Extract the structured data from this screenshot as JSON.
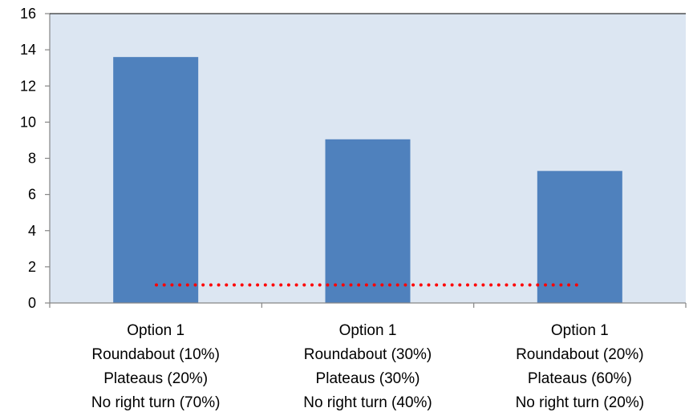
{
  "chart_data": {
    "type": "bar",
    "categories": [
      [
        "Option 1",
        "Roundabout (10%)",
        "Plateaus (20%)",
        "No right turn (70%)"
      ],
      [
        "Option 1",
        "Roundabout (30%)",
        "Plateaus (30%)",
        "No right turn (40%)"
      ],
      [
        "Option 1",
        "Roundabout (20%)",
        "Plateaus (60%)",
        "No right turn (20%)"
      ]
    ],
    "values": [
      13.6,
      9.05,
      7.3
    ],
    "reference_line": {
      "value": 1,
      "style": "dotted",
      "color": "#ff0000"
    },
    "ylim": [
      0,
      16
    ],
    "yticks": [
      0,
      2,
      4,
      6,
      8,
      10,
      12,
      14,
      16
    ],
    "grid": false,
    "title": "",
    "xlabel": "",
    "ylabel": "",
    "colors": {
      "bar": "#4f81bd",
      "plot_background": "#dce6f2",
      "axis": "#868686",
      "reference_line": "#ff0000"
    }
  }
}
